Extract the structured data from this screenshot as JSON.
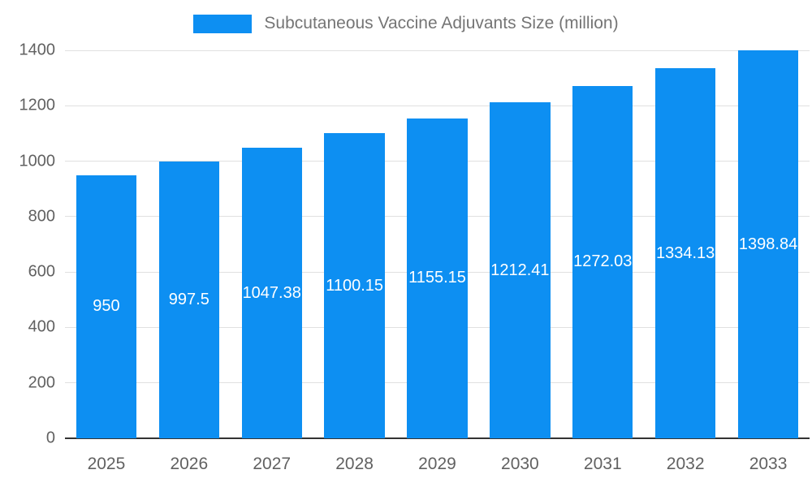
{
  "chart_data": {
    "type": "bar",
    "title": "Subcutaneous Vaccine Adjuvants Size (million)",
    "categories": [
      "2025",
      "2026",
      "2027",
      "2028",
      "2029",
      "2030",
      "2031",
      "2032",
      "2033"
    ],
    "values": [
      950,
      997.5,
      1047.38,
      1100.15,
      1155.15,
      1212.41,
      1272.03,
      1334.13,
      1398.84
    ],
    "bar_labels": [
      "950",
      "997.5",
      "1047.38",
      "1100.15",
      "1155.15",
      "1212.41",
      "1272.03",
      "1334.13",
      "1398.84"
    ],
    "xlabel": "",
    "ylabel": "",
    "ylim": [
      0,
      1400
    ],
    "y_ticks": [
      0,
      200,
      400,
      600,
      800,
      1000,
      1200,
      1400
    ],
    "legend_position": "top",
    "grid": true,
    "colors": {
      "bar": "#0d8ff2",
      "bar_label": "#ffffff",
      "gridline": "#e0e0e0",
      "baseline": "#333333",
      "axis_text": "#616161",
      "legend_text": "#757575",
      "background": "#ffffff"
    }
  }
}
